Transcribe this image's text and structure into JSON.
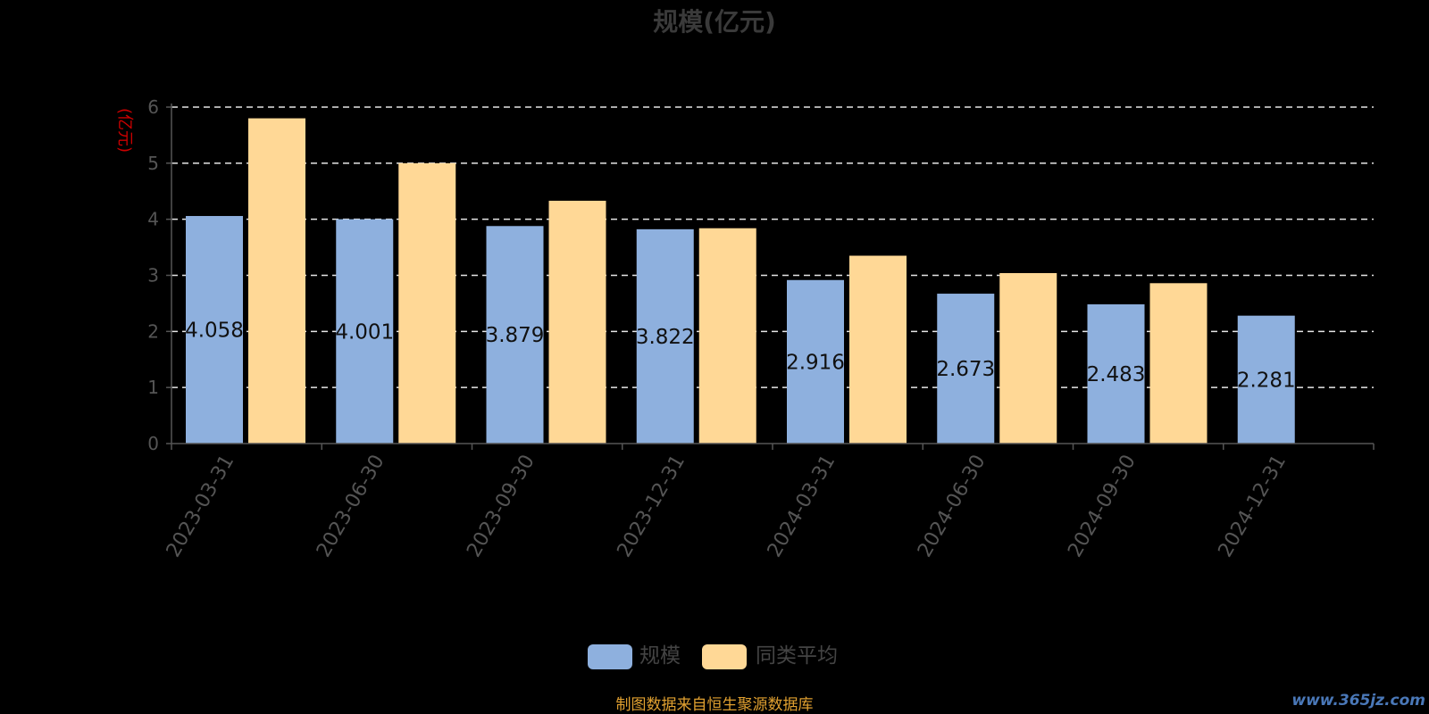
{
  "chart_data": {
    "type": "bar",
    "title": "规模(亿元)",
    "ylabel": "(亿元)",
    "ylim": [
      0,
      6
    ],
    "yticks": [
      0,
      1,
      2,
      3,
      4,
      5,
      6
    ],
    "grid": true,
    "legend_position": "bottom",
    "categories": [
      "2023-03-31",
      "2023-06-30",
      "2023-09-30",
      "2023-12-31",
      "2024-03-31",
      "2024-06-30",
      "2024-09-30",
      "2024-12-31"
    ],
    "series": [
      {
        "name": "规模",
        "color": "#8eb0de",
        "values": [
          4.058,
          4.001,
          3.879,
          3.822,
          2.916,
          2.673,
          2.483,
          2.281
        ],
        "labels": [
          "4.058",
          "4.001",
          "3.879",
          "3.822",
          "2.916",
          "2.673",
          "2.483",
          "2.281"
        ]
      },
      {
        "name": "同类平均",
        "color": "#ffd896",
        "values": [
          5.8,
          5.0,
          4.33,
          3.84,
          3.35,
          3.04,
          2.86,
          null
        ]
      }
    ]
  },
  "footer": {
    "source": "制图数据来自恒生聚源数据库",
    "watermark": "www.365jz.com"
  }
}
